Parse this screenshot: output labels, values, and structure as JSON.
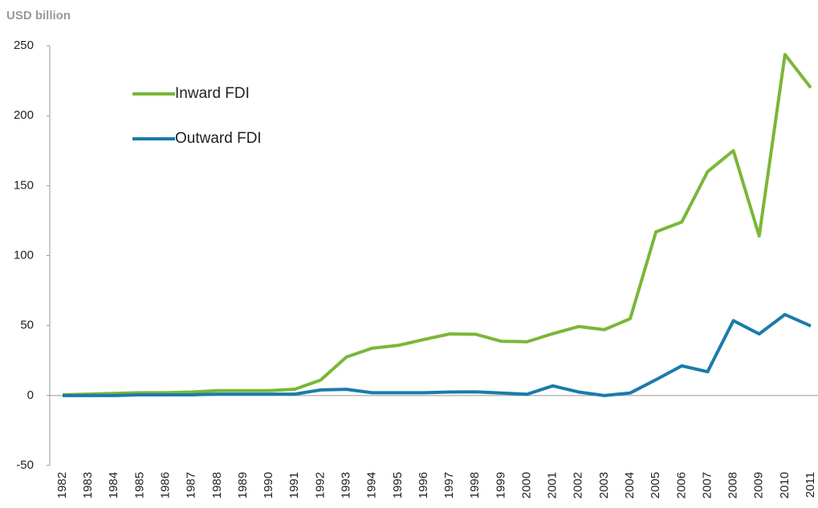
{
  "chart_data": {
    "type": "line",
    "y_label": "USD billion",
    "categories": [
      "1982",
      "1983",
      "1984",
      "1985",
      "1986",
      "1987",
      "1988",
      "1989",
      "1990",
      "1991",
      "1992",
      "1993",
      "1994",
      "1995",
      "1996",
      "1997",
      "1998",
      "1999",
      "2000",
      "2001",
      "2002",
      "2003",
      "2004",
      "2005",
      "2006",
      "2007",
      "2008",
      "2009",
      "2010",
      "2011"
    ],
    "series": [
      {
        "name": "Inward FDI",
        "color": "#7ab737",
        "values": [
          0.5,
          1,
          1.5,
          2,
          2,
          2.5,
          3.5,
          3.5,
          3.5,
          4.5,
          11,
          27.5,
          33.8,
          35.8,
          40,
          44,
          43.8,
          38.8,
          38.4,
          44.2,
          49.3,
          47.1,
          54.9,
          117,
          124,
          160,
          175,
          114,
          243.7,
          220
        ]
      },
      {
        "name": "Outward FDI",
        "color": "#1a7bab",
        "values": [
          0,
          0,
          0,
          0.5,
          0.5,
          0.5,
          1,
          1,
          1,
          1,
          4,
          4.4,
          2,
          2,
          2,
          2.5,
          2.6,
          1.8,
          0.9,
          6.9,
          2.5,
          0,
          1.8,
          11.3,
          21.2,
          17,
          53.5,
          44,
          57.9,
          49.7
        ]
      }
    ],
    "ylim": [
      -50,
      250
    ],
    "yticks": [
      -50,
      0,
      50,
      100,
      150,
      200,
      250
    ],
    "legend": "upper left",
    "grid": false
  }
}
